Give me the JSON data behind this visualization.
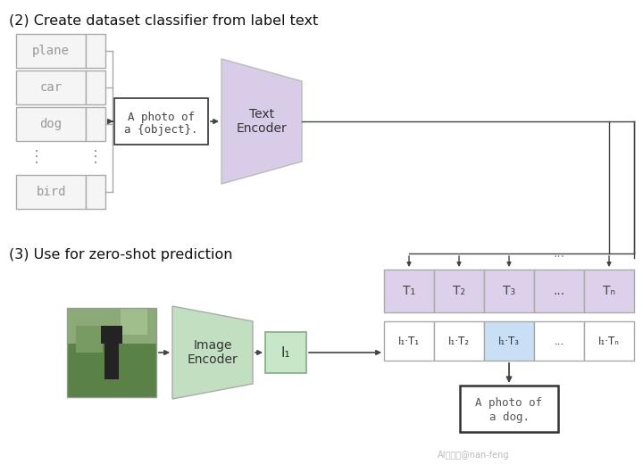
{
  "title_top": "(2) Create dataset classifier from label text",
  "title_bottom": "(3) Use for zero-shot prediction",
  "bg_color": "#ffffff",
  "label_box_color": "#f5f5f5",
  "label_box_edge": "#aaaaaa",
  "text_encoder_color": "#d8cce8",
  "image_encoder_color": "#c2dfc2",
  "t_box_color": "#ddd0ea",
  "t_box_edge": "#aaaaaa",
  "i_box_color": "#c8e6c8",
  "i_box_edge": "#88aa88",
  "dot_product_highlight": "#c8dff5",
  "dot_product_default": "#ffffff",
  "dot_box_edge": "#aaaaaa",
  "result_box_color": "#ffffff",
  "result_box_edge": "#333333",
  "arrow_color": "#444444",
  "photo_template_line1": "A photo of",
  "photo_template_line2": "a {object}.",
  "text_encoder_label": "Text\nEncoder",
  "image_encoder_label": "Image\nEncoder",
  "t_labels": [
    "T₁",
    "T₂",
    "T₃",
    "...",
    "Tₙ"
  ],
  "dp_labels": [
    "I₁·T₁",
    "I₁·T₂",
    "I₁·T₃",
    "...",
    "I₁·Tₙ"
  ],
  "i_label": "I₁",
  "result_text_line1": "A photo of",
  "result_text_line2": "a dog.",
  "highlight_index": 2,
  "watermark": "AI小麻雀@nan-feng",
  "label_texts": [
    "plane",
    "car",
    "dog",
    "bird"
  ]
}
